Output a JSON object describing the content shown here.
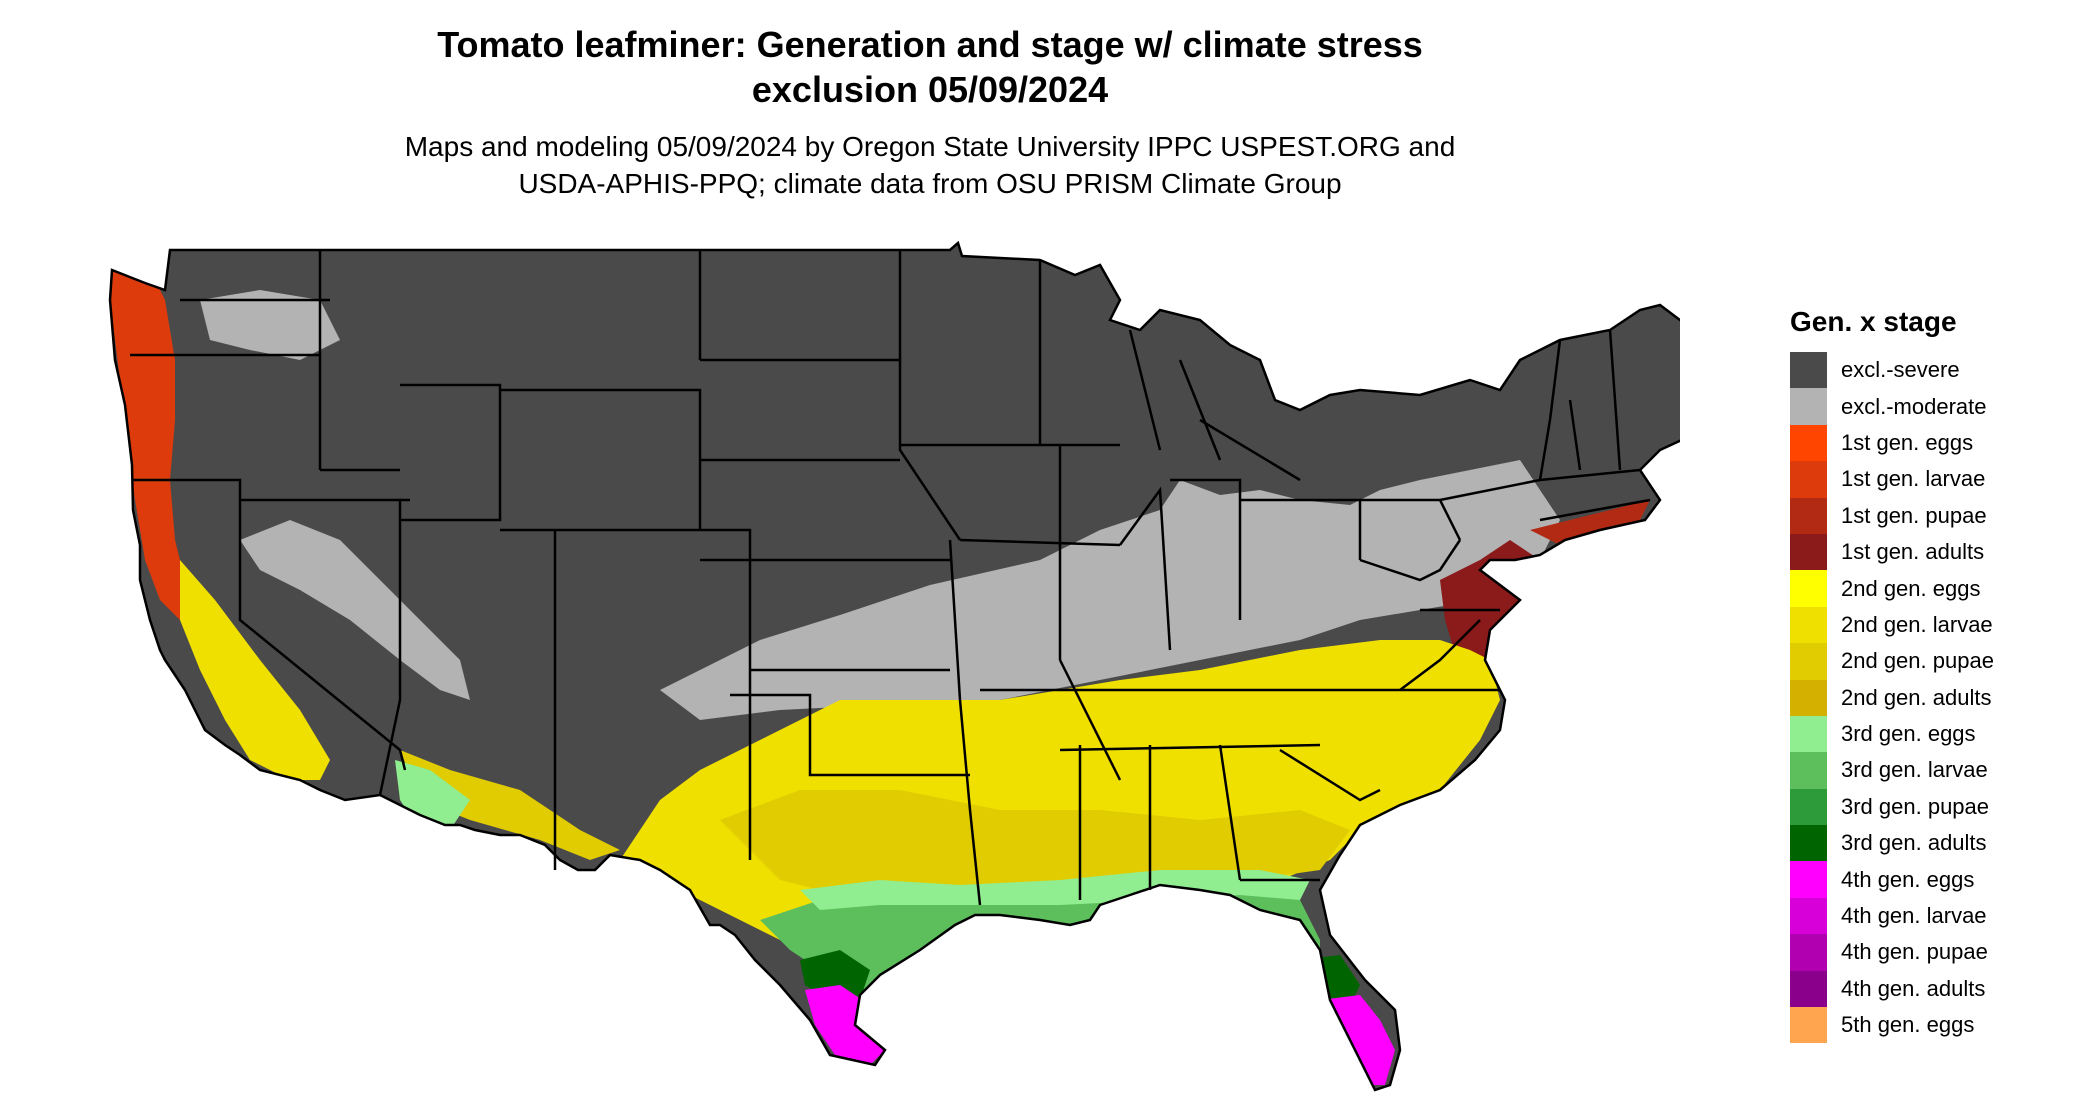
{
  "title": {
    "line1": "Tomato leafminer: Generation and stage w/ climate stress",
    "line2": "exclusion 05/09/2024"
  },
  "subtitle": {
    "line1": "Maps and modeling 05/09/2024 by Oregon State University IPPC USPEST.ORG and",
    "line2": "USDA-APHIS-PPQ; climate data from OSU PRISM Climate Group"
  },
  "map": {
    "region": "conterminous-us",
    "colors": {
      "excl_severe": "#4a4a4a",
      "excl_moderate": "#b3b3b3",
      "gen1_larvae": "#de3b0c",
      "gen1_pupae": "#b22a14",
      "gen1_adults": "#8b1a1a",
      "gen2_eggs": "#ffff00",
      "gen2_larvae": "#f0e000",
      "gen2_pupae": "#e0cc00",
      "gen2_adults": "#d4b000",
      "gen3_eggs": "#90ee90",
      "gen3_larvae": "#5cbf5c",
      "gen3_pupae": "#2e9b3a",
      "gen3_adults": "#006400",
      "gen4_eggs": "#ff00ff",
      "gen4_larvae": "#d800d8",
      "state_border": "#000000"
    }
  },
  "legend": {
    "title": "Gen. x stage",
    "items": [
      {
        "label": "excl.-severe",
        "color": "#4a4a4a"
      },
      {
        "label": "excl.-moderate",
        "color": "#b3b3b3"
      },
      {
        "label": "1st gen. eggs",
        "color": "#ff4500"
      },
      {
        "label": "1st gen. larvae",
        "color": "#de3b0c"
      },
      {
        "label": "1st gen. pupae",
        "color": "#b22a14"
      },
      {
        "label": "1st gen. adults",
        "color": "#8b1a1a"
      },
      {
        "label": "2nd gen. eggs",
        "color": "#ffff00"
      },
      {
        "label": "2nd gen. larvae",
        "color": "#f0e000"
      },
      {
        "label": "2nd gen. pupae",
        "color": "#e0cc00"
      },
      {
        "label": "2nd gen. adults",
        "color": "#d4b000"
      },
      {
        "label": "3rd gen. eggs",
        "color": "#90ee90"
      },
      {
        "label": "3rd gen. larvae",
        "color": "#5cbf5c"
      },
      {
        "label": "3rd gen. pupae",
        "color": "#2e9b3a"
      },
      {
        "label": "3rd gen. adults",
        "color": "#006400"
      },
      {
        "label": "4th gen. eggs",
        "color": "#ff00ff"
      },
      {
        "label": "4th gen. larvae",
        "color": "#d800d8"
      },
      {
        "label": "4th gen. pupae",
        "color": "#b000b0"
      },
      {
        "label": "4th gen. adults",
        "color": "#8b008b"
      },
      {
        "label": "5th gen. eggs",
        "color": "#ffa54f"
      }
    ]
  }
}
